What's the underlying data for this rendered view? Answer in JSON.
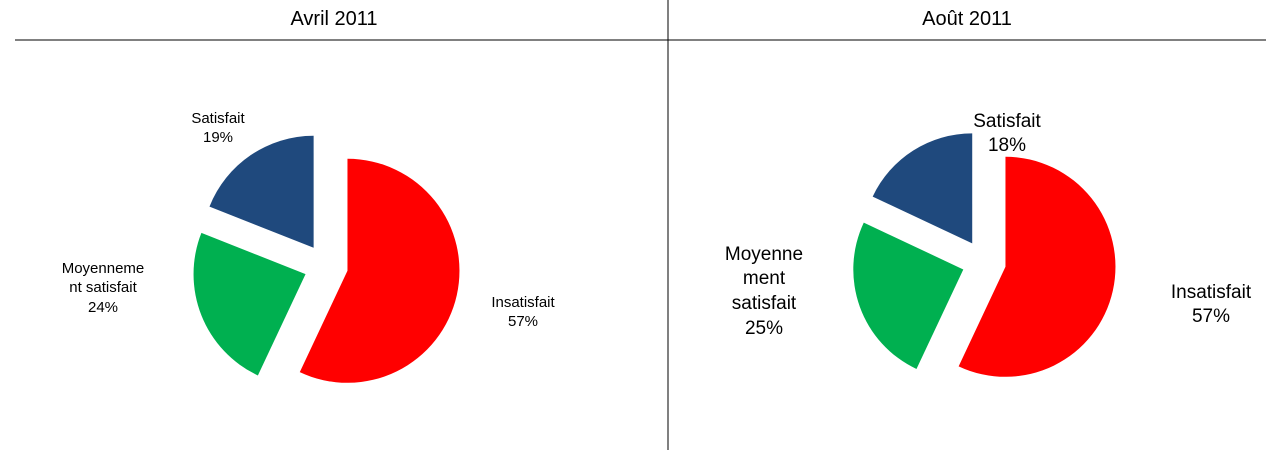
{
  "chart_data": [
    {
      "type": "pie",
      "title": "Avril 2011",
      "categories": [
        "Insatisfait",
        "Moyennement satisfait",
        "Satisfait"
      ],
      "values": [
        57,
        24,
        19
      ],
      "value_labels": [
        "57%",
        "24%",
        "19%"
      ],
      "colors": [
        "#ff0000",
        "#00b050",
        "#1f497d"
      ]
    },
    {
      "type": "pie",
      "title": "Août 2011",
      "categories": [
        "Insatisfait",
        "Moyennement satisfait",
        "Satisfait"
      ],
      "values": [
        57,
        25,
        18
      ],
      "value_labels": [
        "57%",
        "25%",
        "18%"
      ],
      "colors": [
        "#ff0000",
        "#00b050",
        "#1f497d"
      ]
    }
  ]
}
